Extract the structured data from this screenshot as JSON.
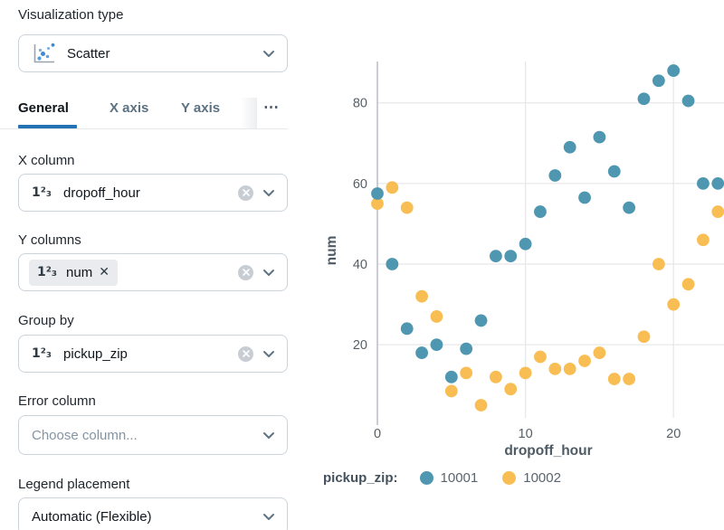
{
  "panel": {
    "viz_type_label": "Visualization type",
    "viz_type_value": "Scatter",
    "tabs": [
      {
        "label": "General",
        "active": true
      },
      {
        "label": "X axis",
        "active": false
      },
      {
        "label": "Y axis",
        "active": false
      }
    ],
    "tabs_overflow_glyph": "⋯",
    "number_type_glyph": "1²₃",
    "fields": {
      "x_column": {
        "label": "X column",
        "value": "dropoff_hour"
      },
      "y_columns": {
        "label": "Y columns",
        "chip_value": "num",
        "chip_remove_glyph": "✕"
      },
      "group_by": {
        "label": "Group by",
        "value": "pickup_zip"
      },
      "error_column": {
        "label": "Error column",
        "placeholder": "Choose column..."
      },
      "legend_placement": {
        "label": "Legend placement",
        "value": "Automatic (Flexible)"
      }
    }
  },
  "chart_data": {
    "type": "scatter",
    "x": [
      0,
      1,
      2,
      3,
      4,
      5,
      6,
      7,
      8,
      9,
      10,
      11,
      12,
      13,
      14,
      15,
      16,
      17,
      18,
      19,
      20,
      21,
      22,
      23
    ],
    "series": [
      {
        "name": "10001",
        "color": "#4F97B0",
        "values": [
          57.5,
          40,
          24,
          18,
          20,
          12,
          19,
          26,
          42,
          42,
          45,
          53,
          62,
          69,
          56.5,
          71.5,
          63,
          54,
          81,
          85.5,
          88,
          80.5,
          60,
          60
        ]
      },
      {
        "name": "10002",
        "color": "#F8BE54",
        "values": [
          55,
          59,
          54,
          32,
          27,
          8.5,
          13,
          5,
          12,
          9,
          13,
          17,
          14,
          14,
          16,
          18,
          11.5,
          11.5,
          22,
          40,
          30,
          35,
          46,
          53
        ]
      }
    ],
    "xlabel": "dropoff_hour",
    "ylabel": "num",
    "legend_title": "pickup_zip:",
    "x_ticks": [
      0,
      10,
      20
    ],
    "y_ticks": [
      20,
      40,
      60,
      80
    ],
    "xlim": [
      -0.7,
      23.5
    ],
    "ylim": [
      0,
      90
    ],
    "grid": true,
    "legend_position": "bottom"
  }
}
